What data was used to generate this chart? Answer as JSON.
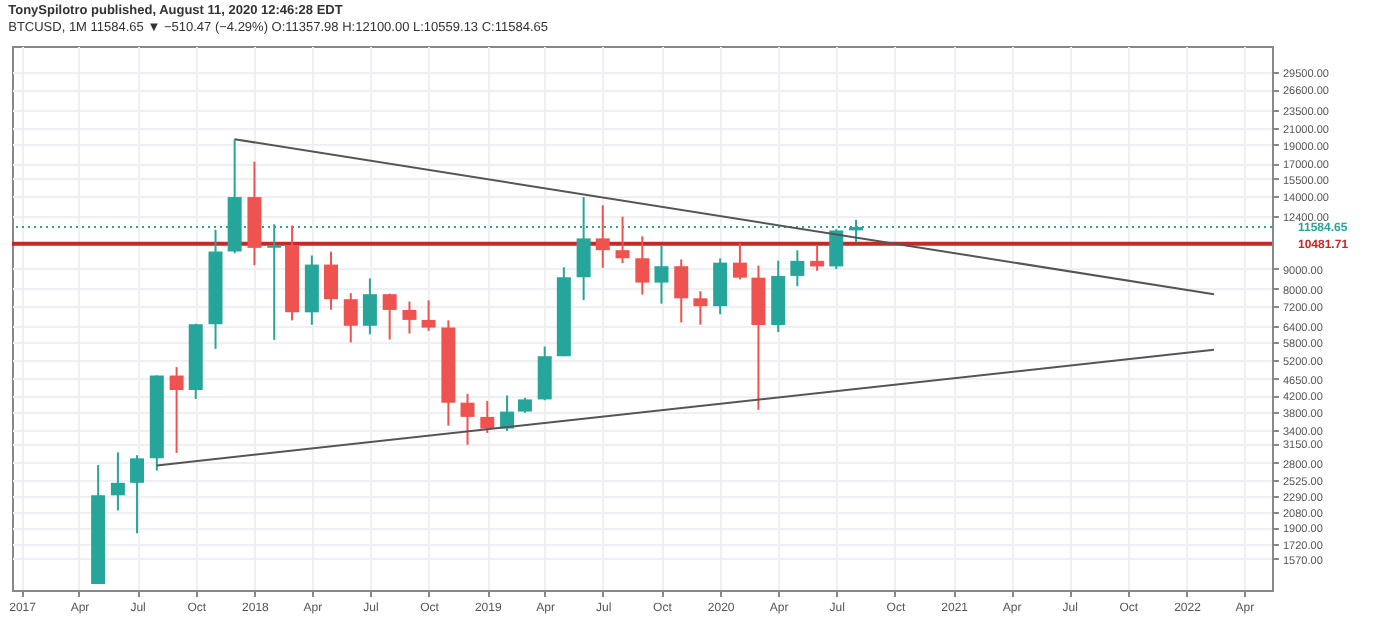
{
  "chart_data": {
    "type": "candlestick",
    "title": "TonySpilotro published, August 11, 2020 12:46:28 EDT",
    "subtitle": "BTCUSD, 1M 11584.65 ▼ −510.47 (−4.29%) O:11357.98 H:12100.00 L:10559.13 C:11584.65",
    "x": [
      "2017-05",
      "2017-06",
      "2017-07",
      "2017-08",
      "2017-09",
      "2017-10",
      "2017-11",
      "2017-12",
      "2018-01",
      "2018-02",
      "2018-03",
      "2018-04",
      "2018-05",
      "2018-06",
      "2018-07",
      "2018-08",
      "2018-09",
      "2018-10",
      "2018-11",
      "2018-12",
      "2019-01",
      "2019-02",
      "2019-03",
      "2019-04",
      "2019-05",
      "2019-06",
      "2019-07",
      "2019-08",
      "2019-09",
      "2019-10",
      "2019-11",
      "2019-12",
      "2020-01",
      "2020-02",
      "2020-03",
      "2020-04",
      "2020-05",
      "2020-06",
      "2020-07",
      "2020-08"
    ],
    "ohlc": [
      [
        1348,
        2760,
        1348,
        2300
      ],
      [
        2300,
        2980,
        2100,
        2480
      ],
      [
        2480,
        2930,
        1830,
        2875
      ],
      [
        2875,
        4740,
        2670,
        4735
      ],
      [
        4735,
        4980,
        2970,
        4340
      ],
      [
        4340,
        6470,
        4110,
        6450
      ],
      [
        6450,
        11400,
        5560,
        10000
      ],
      [
        10000,
        19666,
        9900,
        13880
      ],
      [
        13880,
        17180,
        9200,
        10220
      ],
      [
        10220,
        11780,
        5870,
        10330
      ],
      [
        10330,
        11690,
        6600,
        6930
      ],
      [
        6930,
        9760,
        6430,
        9240
      ],
      [
        9240,
        9990,
        7040,
        7500
      ],
      [
        7500,
        7780,
        5780,
        6390
      ],
      [
        6390,
        8500,
        6070,
        7730
      ],
      [
        7730,
        7760,
        5880,
        7030
      ],
      [
        7030,
        7400,
        6100,
        6620
      ],
      [
        6620,
        7450,
        6200,
        6320
      ],
      [
        6320,
        6600,
        3500,
        4020
      ],
      [
        4020,
        4240,
        3120,
        3690
      ],
      [
        3690,
        4060,
        3350,
        3440
      ],
      [
        3440,
        4200,
        3390,
        3810
      ],
      [
        3810,
        4140,
        3780,
        4100
      ],
      [
        4100,
        5640,
        4080,
        5320
      ],
      [
        5320,
        9090,
        5320,
        8560
      ],
      [
        8560,
        13880,
        7460,
        10820
      ],
      [
        10820,
        13200,
        9060,
        10080
      ],
      [
        10080,
        12330,
        9320,
        9600
      ],
      [
        9600,
        10960,
        7710,
        8290
      ],
      [
        8290,
        10360,
        7300,
        9150
      ],
      [
        9150,
        9530,
        6520,
        7540
      ],
      [
        7540,
        7870,
        6430,
        7190
      ],
      [
        7190,
        9590,
        6850,
        9350
      ],
      [
        9350,
        10500,
        8450,
        8540
      ],
      [
        8540,
        9180,
        3850,
        6420
      ],
      [
        6420,
        9460,
        6150,
        8630
      ],
      [
        8630,
        10070,
        8110,
        9450
      ],
      [
        9450,
        10390,
        8900,
        9140
      ],
      [
        9140,
        11440,
        8990,
        11350
      ],
      [
        11357.98,
        12100,
        10559.13,
        11584.65
      ]
    ],
    "colors": [
      "#26a69a",
      "#26a69a",
      "#26a69a",
      "#26a69a",
      "#ef5350",
      "#26a69a",
      "#26a69a",
      "#26a69a",
      "#ef5350",
      "#26a69a",
      "#ef5350",
      "#26a69a",
      "#ef5350",
      "#ef5350",
      "#26a69a",
      "#ef5350",
      "#ef5350",
      "#ef5350",
      "#ef5350",
      "#ef5350",
      "#ef5350",
      "#26a69a",
      "#26a69a",
      "#26a69a",
      "#26a69a",
      "#26a69a",
      "#ef5350",
      "#ef5350",
      "#ef5350",
      "#26a69a",
      "#ef5350",
      "#ef5350",
      "#26a69a",
      "#ef5350",
      "#ef5350",
      "#26a69a",
      "#26a69a",
      "#ef5350",
      "#26a69a",
      "#26a69a"
    ],
    "series": [
      {
        "type": "line",
        "color": "#555555",
        "x": [
          "2017-12",
          "2022-02-13"
        ],
        "values": [
          19666,
          7730
        ]
      },
      {
        "type": "line",
        "color": "#555555",
        "x": [
          "2017-08",
          "2022-02-13"
        ],
        "values": [
          2755,
          5530
        ]
      }
    ],
    "ref_lines": [
      {
        "axis": "y",
        "value": 10481.71,
        "label": "10481.71",
        "color": "#c62828",
        "line_style": "solid"
      },
      {
        "axis": "y",
        "value": 11584.65,
        "label": "11584.65",
        "color": "#26a69a",
        "line_style": "dotted"
      }
    ],
    "log": "y",
    "grid": true,
    "xlim": [
      "2016-12-17",
      "2022-05-15"
    ],
    "xticks": [
      {
        "value": "2017-01",
        "label": "2017"
      },
      {
        "value": "2017-04",
        "label": "Apr"
      },
      {
        "value": "2017-07",
        "label": "Jul"
      },
      {
        "value": "2017-10",
        "label": "Oct"
      },
      {
        "value": "2018-01",
        "label": "2018"
      },
      {
        "value": "2018-04",
        "label": "Apr"
      },
      {
        "value": "2018-07",
        "label": "Jul"
      },
      {
        "value": "2018-10",
        "label": "Oct"
      },
      {
        "value": "2019-01",
        "label": "2019"
      },
      {
        "value": "2019-04",
        "label": "Apr"
      },
      {
        "value": "2019-07",
        "label": "Jul"
      },
      {
        "value": "2019-10",
        "label": "Oct"
      },
      {
        "value": "2020-01",
        "label": "2020"
      },
      {
        "value": "2020-04",
        "label": "Apr"
      },
      {
        "value": "2020-07",
        "label": "Jul"
      },
      {
        "value": "2020-10",
        "label": "Oct"
      },
      {
        "value": "2021-01",
        "label": "2021"
      },
      {
        "value": "2021-04",
        "label": "Apr"
      },
      {
        "value": "2021-07",
        "label": "Jul"
      },
      {
        "value": "2021-10",
        "label": "Oct"
      },
      {
        "value": "2022-01",
        "label": "2022"
      },
      {
        "value": "2022-04",
        "label": "Apr"
      }
    ],
    "ylim": [
      1300,
      34500
    ],
    "yticks": [
      {
        "value": 1570,
        "label": "1570.00"
      },
      {
        "value": 1720,
        "label": "1720.00"
      },
      {
        "value": 1900,
        "label": "1900.00"
      },
      {
        "value": 2080,
        "label": "2080.00"
      },
      {
        "value": 2290,
        "label": "2290.00"
      },
      {
        "value": 2525,
        "label": "2525.00"
      },
      {
        "value": 2800,
        "label": "2800.00"
      },
      {
        "value": 3150,
        "label": "3150.00"
      },
      {
        "value": 3400,
        "label": "3400.00"
      },
      {
        "value": 3800,
        "label": "3800.00"
      },
      {
        "value": 4200,
        "label": "4200.00"
      },
      {
        "value": 4650,
        "label": "4650.00"
      },
      {
        "value": 5200,
        "label": "5200.00"
      },
      {
        "value": 5800,
        "label": "5800.00"
      },
      {
        "value": 6400,
        "label": "6400.00"
      },
      {
        "value": 7200,
        "label": "7200.00"
      },
      {
        "value": 8000,
        "label": "8000.00"
      },
      {
        "value": 9000,
        "label": "9000.00"
      },
      {
        "value": 12400,
        "label": "12400.00"
      },
      {
        "value": 14000,
        "label": "14000.00"
      },
      {
        "value": 15500,
        "label": "15500.00"
      },
      {
        "value": 17000,
        "label": "17000.00"
      },
      {
        "value": 19000,
        "label": "19000.00"
      },
      {
        "value": 21000,
        "label": "21000.00"
      },
      {
        "value": 23500,
        "label": "23500.00"
      },
      {
        "value": 26600,
        "label": "26600.00"
      },
      {
        "value": 29500,
        "label": "29500.00"
      }
    ]
  }
}
